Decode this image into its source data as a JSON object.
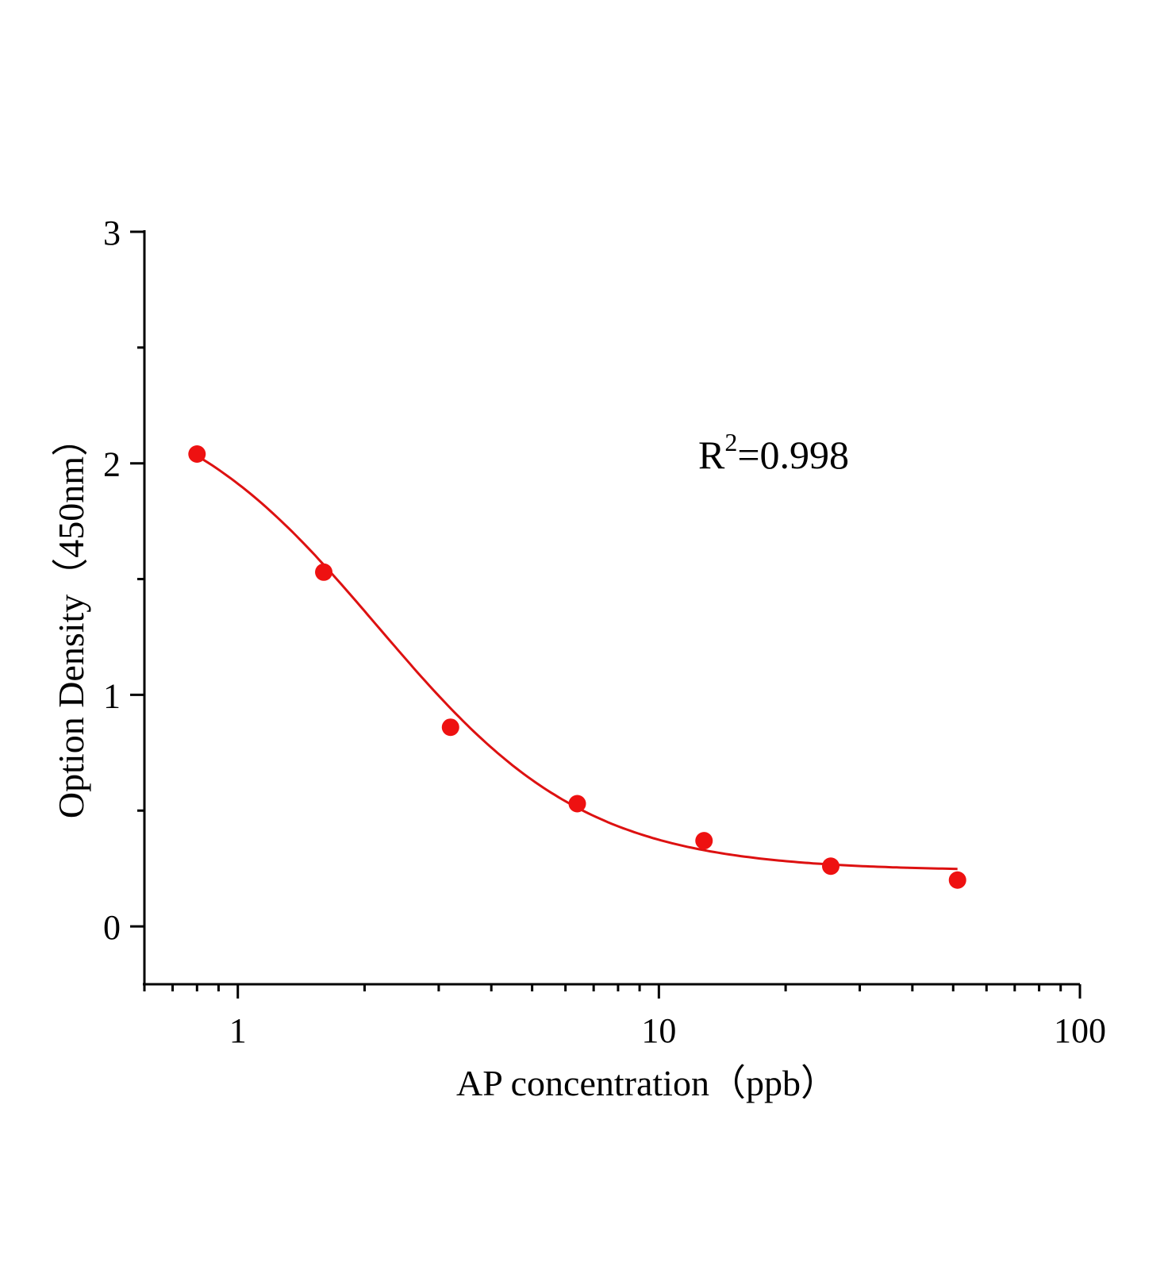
{
  "chart_data": {
    "type": "scatter",
    "xlabel": "AP concentration（ppb）",
    "ylabel": "Option Density（450nm）",
    "x_scale": "log",
    "xlim": [
      0.6,
      100
    ],
    "ylim": [
      -0.25,
      3
    ],
    "x_ticks": [
      "1",
      "10",
      "100"
    ],
    "y_ticks": [
      "0",
      "1",
      "2",
      "3"
    ],
    "grid": false,
    "annotation": {
      "base": "R",
      "sup": "2",
      "rest": "=0.998"
    },
    "point_color": "#ee1111",
    "line_color": "#dd1111",
    "points": {
      "x": [
        0.8,
        1.6,
        3.2,
        6.4,
        12.8,
        25.6,
        51.2
      ],
      "y": [
        2.04,
        1.53,
        0.86,
        0.53,
        0.37,
        0.26,
        0.2
      ]
    },
    "fit": "four-parameter logistic curve"
  }
}
